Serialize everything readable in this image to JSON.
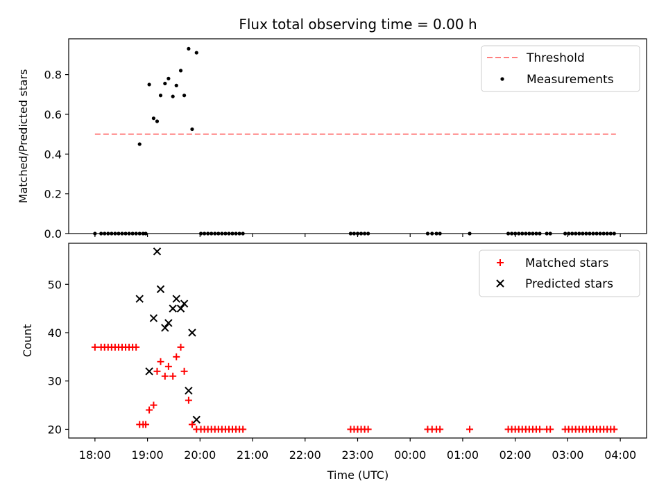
{
  "title": "Flux total observing time = 0.00 h",
  "chart_data": [
    {
      "type": "scatter",
      "ylabel": "Matched/Predicted stars",
      "xlim": [
        "17:30",
        "04:30"
      ],
      "ylim": [
        0,
        0.98
      ],
      "yticks": [
        0.0,
        0.2,
        0.4,
        0.6,
        0.8
      ],
      "ytick_labels": [
        "0.0",
        "0.2",
        "0.4",
        "0.6",
        "0.8"
      ],
      "legend_position": "top-right",
      "threshold": {
        "name": "Threshold",
        "value": 0.5,
        "x": [
          "18:00",
          "03:55"
        ],
        "color": "#ff7f7f"
      },
      "series": [
        {
          "name": "Measurements",
          "color": "#000000",
          "marker": "dot",
          "x": [
            "18:00",
            "18:07",
            "18:11",
            "18:15",
            "18:19",
            "18:23",
            "18:27",
            "18:31",
            "18:35",
            "18:39",
            "18:43",
            "18:47",
            "18:51",
            "18:55",
            "18:51",
            "18:58",
            "19:02",
            "19:07",
            "19:11",
            "19:15",
            "19:20",
            "19:24",
            "19:29",
            "19:33",
            "19:38",
            "19:42",
            "19:47",
            "19:51",
            "19:56",
            "20:01",
            "20:05",
            "20:09",
            "20:13",
            "20:17",
            "20:21",
            "20:25",
            "20:29",
            "20:33",
            "20:37",
            "20:41",
            "20:45",
            "20:49",
            "22:52",
            "22:56",
            "23:00",
            "23:04",
            "23:08",
            "23:12",
            "00:20",
            "00:25",
            "00:30",
            "00:34",
            "01:08",
            "01:52",
            "01:56",
            "02:00",
            "02:04",
            "02:08",
            "02:12",
            "02:16",
            "02:20",
            "02:24",
            "02:28",
            "02:36",
            "02:40",
            "02:57",
            "03:01",
            "03:05",
            "03:09",
            "03:13",
            "03:17",
            "03:21",
            "03:25",
            "03:29",
            "03:33",
            "03:37",
            "03:41",
            "03:45",
            "03:49",
            "03:53"
          ],
          "y": [
            0,
            0,
            0,
            0,
            0,
            0,
            0,
            0,
            0,
            0,
            0,
            0,
            0,
            0,
            0.45,
            0.0,
            0.75,
            0.58,
            0.565,
            0.695,
            0.755,
            0.78,
            0.69,
            0.745,
            0.82,
            0.695,
            0.93,
            0.525,
            0.91,
            0,
            0,
            0,
            0,
            0,
            0,
            0,
            0,
            0,
            0,
            0,
            0,
            0,
            0,
            0,
            0,
            0,
            0,
            0,
            0,
            0,
            0,
            0,
            0,
            0,
            0,
            0,
            0,
            0,
            0,
            0,
            0,
            0,
            0,
            0,
            0,
            0,
            0,
            0,
            0,
            0,
            0,
            0,
            0,
            0,
            0,
            0,
            0,
            0,
            0,
            0
          ]
        }
      ]
    },
    {
      "type": "scatter",
      "xlabel": "Time (UTC)",
      "ylabel": "Count",
      "xlim": [
        "17:30",
        "04:30"
      ],
      "ylim": [
        18.2,
        58.5
      ],
      "xticks": [
        "18:00",
        "19:00",
        "20:00",
        "21:00",
        "22:00",
        "23:00",
        "00:00",
        "01:00",
        "02:00",
        "03:00",
        "04:00"
      ],
      "yticks": [
        20,
        30,
        40,
        50
      ],
      "ytick_labels": [
        "20",
        "30",
        "40",
        "50"
      ],
      "legend_position": "top-right",
      "series": [
        {
          "name": "Matched stars",
          "color": "#ff0000",
          "marker": "plus",
          "x": [
            "18:00",
            "18:07",
            "18:11",
            "18:15",
            "18:19",
            "18:23",
            "18:27",
            "18:31",
            "18:35",
            "18:39",
            "18:43",
            "18:47",
            "18:51",
            "18:55",
            "18:58",
            "19:02",
            "19:07",
            "19:11",
            "19:15",
            "19:20",
            "19:24",
            "19:29",
            "19:33",
            "19:38",
            "19:42",
            "19:47",
            "19:51",
            "19:56",
            "20:01",
            "20:05",
            "20:09",
            "20:13",
            "20:17",
            "20:21",
            "20:25",
            "20:29",
            "20:33",
            "20:37",
            "20:41",
            "20:45",
            "20:49",
            "22:52",
            "22:56",
            "23:00",
            "23:04",
            "23:08",
            "23:12",
            "00:20",
            "00:25",
            "00:30",
            "00:34",
            "01:08",
            "01:52",
            "01:56",
            "02:00",
            "02:04",
            "02:08",
            "02:12",
            "02:16",
            "02:20",
            "02:24",
            "02:28",
            "02:36",
            "02:40",
            "02:57",
            "03:01",
            "03:05",
            "03:09",
            "03:13",
            "03:17",
            "03:21",
            "03:25",
            "03:29",
            "03:33",
            "03:37",
            "03:41",
            "03:45",
            "03:49",
            "03:53"
          ],
          "y": [
            37,
            37,
            37,
            37,
            37,
            37,
            37,
            37,
            37,
            37,
            37,
            37,
            21,
            21,
            21,
            24,
            25,
            32,
            34,
            31,
            33,
            31,
            35,
            37,
            32,
            26,
            21,
            20,
            20,
            20,
            20,
            20,
            20,
            20,
            20,
            20,
            20,
            20,
            20,
            20,
            20,
            20,
            20,
            20,
            20,
            20,
            20,
            20,
            20,
            20,
            20,
            20,
            20,
            20,
            20,
            20,
            20,
            20,
            20,
            20,
            20,
            20,
            20,
            20,
            20,
            20,
            20,
            20,
            20,
            20,
            20,
            20,
            20,
            20,
            20,
            20,
            20,
            20,
            20
          ]
        },
        {
          "name": "Predicted stars",
          "color": "#000000",
          "marker": "x",
          "x": [
            "18:51",
            "19:02",
            "19:07",
            "19:11",
            "19:15",
            "19:20",
            "19:24",
            "19:29",
            "19:33",
            "19:38",
            "19:42",
            "19:47",
            "19:51",
            "19:56"
          ],
          "y": [
            47,
            32,
            43,
            56.8,
            49,
            41,
            42,
            45,
            47,
            45,
            46,
            28,
            40,
            22
          ]
        }
      ]
    }
  ]
}
